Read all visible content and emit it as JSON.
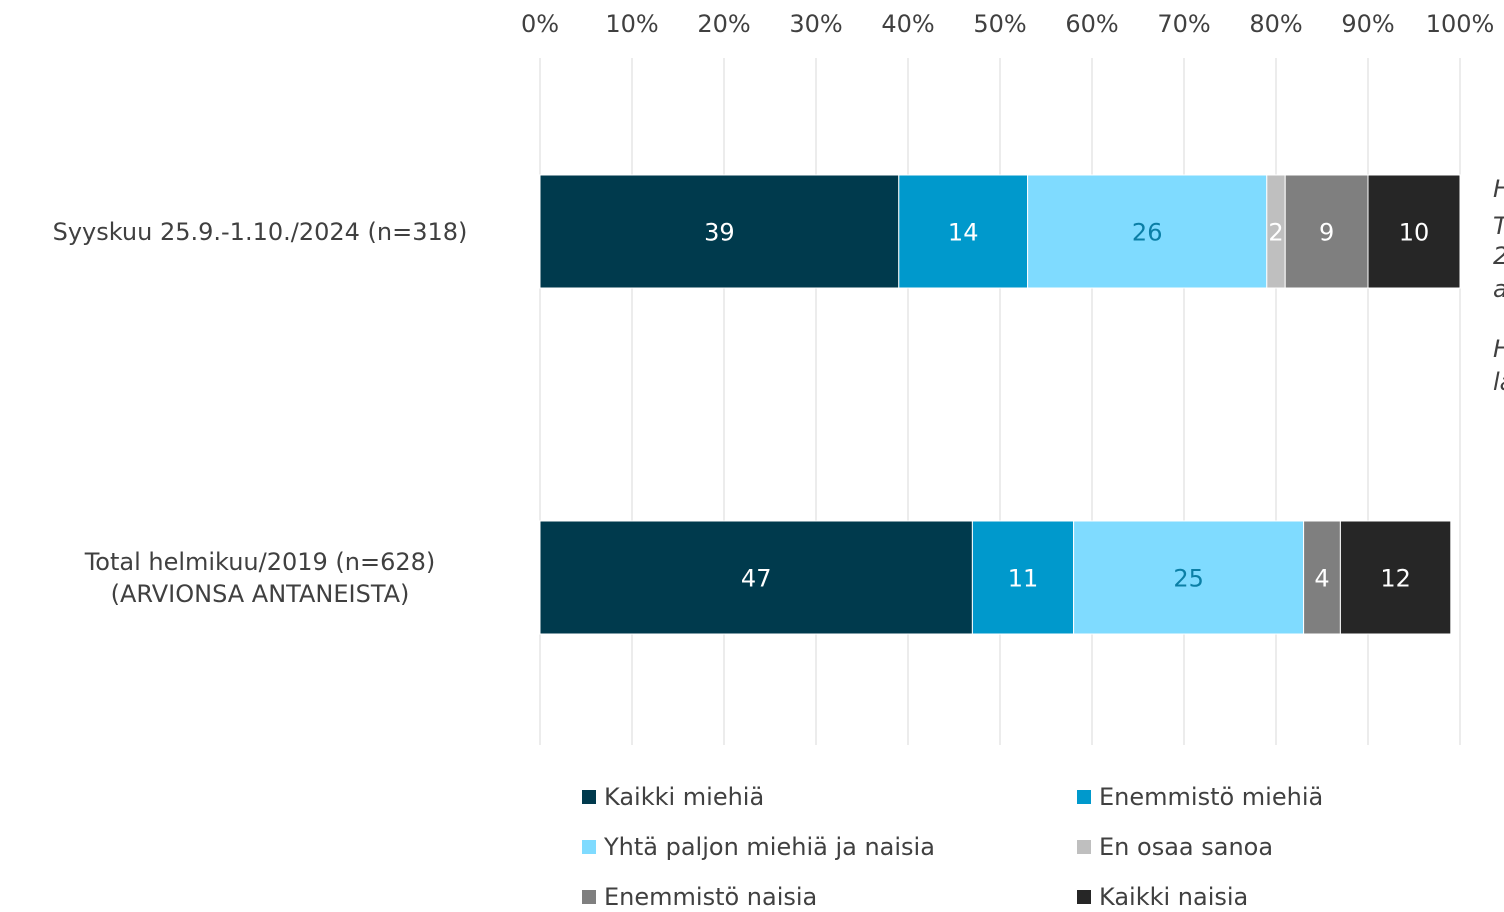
{
  "chart_data": {
    "type": "stacked_bar_horizontal",
    "categories": [
      "Syyskuu 25.9.-1.10./2024 (n=318)",
      "Total helmikuu/2019 (n=628)\n(ARVIONSA ANTANEISTA)"
    ],
    "series": [
      {
        "name": "Kaikki miehiä",
        "color": "#003a4d",
        "label_color": "#ffffff",
        "values": [
          39,
          47
        ]
      },
      {
        "name": "Enemmistö miehiä",
        "color": "#0099cc",
        "label_color": "#ffffff",
        "values": [
          14,
          11
        ]
      },
      {
        "name": "Yhtä paljon miehiä ja naisia",
        "color": "#7fdbff",
        "label_color": "#0b7fa6",
        "values": [
          26,
          25
        ]
      },
      {
        "name": "En osaa sanoa",
        "color": "#bfbfbf",
        "label_color": "#ffffff",
        "values": [
          2,
          null
        ]
      },
      {
        "name": "Enemmistö naisia",
        "color": "#7f7f7f",
        "label_color": "#ffffff",
        "values": [
          9,
          4
        ]
      },
      {
        "name": "Kaikki naisia",
        "color": "#262626",
        "label_color": "#ffffff",
        "values": [
          10,
          12
        ]
      }
    ],
    "xlim": [
      0,
      100
    ],
    "xticks": [
      {
        "value": 0,
        "label": "0%"
      },
      {
        "value": 10,
        "label": "10%"
      },
      {
        "value": 20,
        "label": "20%"
      },
      {
        "value": 30,
        "label": "30%"
      },
      {
        "value": 40,
        "label": "40%"
      },
      {
        "value": 50,
        "label": "50%"
      },
      {
        "value": 60,
        "label": "60%"
      },
      {
        "value": 70,
        "label": "70%"
      },
      {
        "value": 80,
        "label": "80%"
      },
      {
        "value": 90,
        "label": "90%"
      },
      {
        "value": 100,
        "label": "100%"
      }
    ],
    "grid": true,
    "legend": "bottom",
    "annotations": [
      "H",
      "T",
      "2",
      "a",
      "H",
      "la"
    ]
  }
}
